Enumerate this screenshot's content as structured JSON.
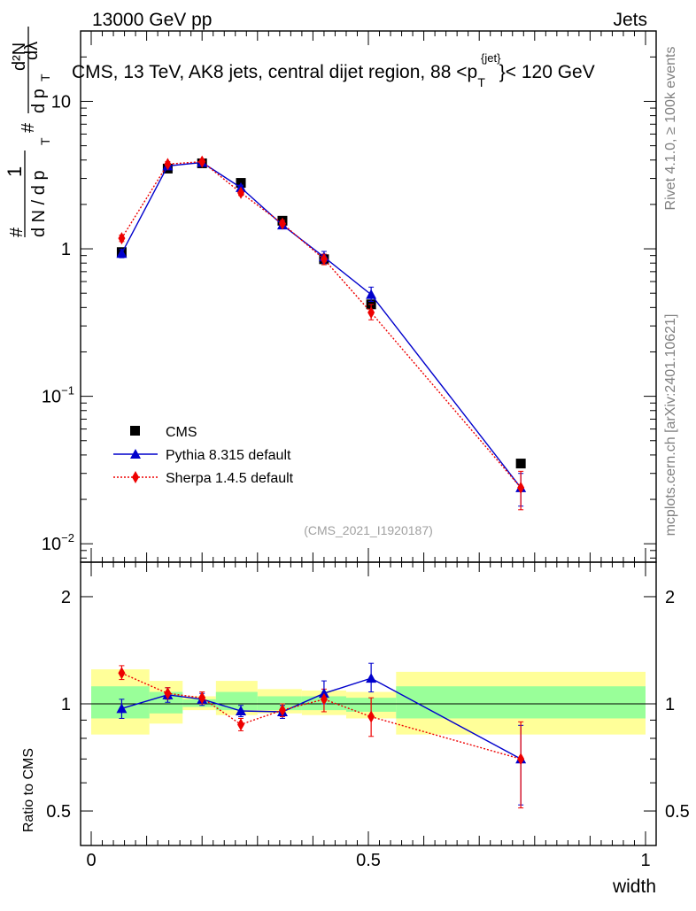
{
  "header": {
    "energy_label": "13000 GeV pp",
    "process_label": "Jets",
    "rivet_label": "Rivet 4.1.0, ≥ 100k events",
    "mcplots_label": "mcplots.cern.ch [arXiv:2401.10621]",
    "analysis_label": "(CMS_2021_I1920187)"
  },
  "ylabel_top": {
    "a": "#",
    "b": "1",
    "c": "d N / d p",
    "d": "T",
    "e": "#",
    "f": "d²N",
    "g": "d p",
    "h": "T",
    "i": "dλ"
  },
  "ylabel_bottom": "Ratio to CMS",
  "xlabel": "width",
  "title": {
    "pre": "CMS, 13 TeV, AK8 jets, central dijet region, 88 <p",
    "sup": "{jet}",
    "sub": "T",
    "post": "}< 120 GeV"
  },
  "legend": [
    {
      "key": "cms",
      "label": "CMS",
      "color": "#000000"
    },
    {
      "key": "pythia",
      "label": "Pythia 8.315 default",
      "color": "#0000cc"
    },
    {
      "key": "sherpa",
      "label": "Sherpa 1.4.5 default",
      "color": "#ee0000"
    }
  ],
  "colors": {
    "band_outer": "#ffff99",
    "band_inner": "#99ff99",
    "cms": "#000000",
    "pythia": "#0000cc",
    "sherpa": "#ee0000"
  },
  "chart_data": {
    "type": "scatter",
    "x_range": [
      0,
      1
    ],
    "x_ticks": [
      {
        "v": 0,
        "label": "0"
      },
      {
        "v": 0.5,
        "label": "0.5"
      },
      {
        "v": 1,
        "label": "1"
      }
    ],
    "main": {
      "yscale": "log",
      "ylim": [
        0.0075,
        30
      ],
      "y_ticks": [
        {
          "v": 0.01,
          "base": "10",
          "exp": "−2"
        },
        {
          "v": 0.1,
          "base": "10",
          "exp": "−1"
        },
        {
          "v": 1,
          "base": "1",
          "exp": ""
        },
        {
          "v": 10,
          "base": "10",
          "exp": ""
        }
      ],
      "x_bins": [
        [
          0,
          0.105
        ],
        [
          0.105,
          0.175
        ],
        [
          0.175,
          0.245
        ],
        [
          0.245,
          0.315
        ],
        [
          0.315,
          0.385
        ],
        [
          0.385,
          0.455
        ],
        [
          0.455,
          0.55
        ],
        [
          0.55,
          1.0
        ]
      ],
      "cms": [
        {
          "x": 0.055,
          "y": 0.95
        },
        {
          "x": 0.138,
          "y": 3.5
        },
        {
          "x": 0.2,
          "y": 3.8
        },
        {
          "x": 0.27,
          "y": 2.8
        },
        {
          "x": 0.345,
          "y": 1.55
        },
        {
          "x": 0.42,
          "y": 0.85
        },
        {
          "x": 0.505,
          "y": 0.42
        },
        {
          "x": 0.775,
          "y": 0.035
        }
      ],
      "pythia": [
        {
          "x": 0.055,
          "y": 0.93,
          "lo": 0.87,
          "hi": 0.99
        },
        {
          "x": 0.138,
          "y": 3.65,
          "lo": 3.5,
          "hi": 3.8
        },
        {
          "x": 0.2,
          "y": 3.85,
          "lo": 3.7,
          "hi": 4.0
        },
        {
          "x": 0.27,
          "y": 2.6,
          "lo": 2.5,
          "hi": 2.7
        },
        {
          "x": 0.345,
          "y": 1.45,
          "lo": 1.38,
          "hi": 1.52
        },
        {
          "x": 0.42,
          "y": 0.88,
          "lo": 0.8,
          "hi": 0.96
        },
        {
          "x": 0.505,
          "y": 0.49,
          "lo": 0.44,
          "hi": 0.55
        },
        {
          "x": 0.775,
          "y": 0.024,
          "lo": 0.018,
          "hi": 0.03
        }
      ],
      "sherpa": [
        {
          "x": 0.055,
          "y": 1.18,
          "lo": 1.12,
          "hi": 1.24
        },
        {
          "x": 0.138,
          "y": 3.75,
          "lo": 3.6,
          "hi": 3.9
        },
        {
          "x": 0.2,
          "y": 3.9,
          "lo": 3.75,
          "hi": 4.05
        },
        {
          "x": 0.27,
          "y": 2.4,
          "lo": 2.3,
          "hi": 2.5
        },
        {
          "x": 0.345,
          "y": 1.48,
          "lo": 1.4,
          "hi": 1.56
        },
        {
          "x": 0.42,
          "y": 0.85,
          "lo": 0.78,
          "hi": 0.92
        },
        {
          "x": 0.505,
          "y": 0.37,
          "lo": 0.33,
          "hi": 0.42
        },
        {
          "x": 0.775,
          "y": 0.024,
          "lo": 0.017,
          "hi": 0.031
        }
      ]
    },
    "ratio": {
      "yscale": "log",
      "ylim": [
        0.4,
        2.5
      ],
      "y_ticks": [
        {
          "v": 0.5,
          "label": "0.5"
        },
        {
          "v": 1,
          "label": "1"
        },
        {
          "v": 2,
          "label": "2"
        }
      ],
      "bands": [
        {
          "x0": 0.0,
          "x1": 0.105,
          "outer_lo": 0.82,
          "outer_hi": 1.25,
          "inner_lo": 0.91,
          "inner_hi": 1.12
        },
        {
          "x0": 0.105,
          "x1": 0.165,
          "outer_lo": 0.88,
          "outer_hi": 1.16,
          "inner_lo": 0.94,
          "inner_hi": 1.08
        },
        {
          "x0": 0.165,
          "x1": 0.225,
          "outer_lo": 0.96,
          "outer_hi": 1.05,
          "inner_lo": 0.98,
          "inner_hi": 1.03
        },
        {
          "x0": 0.225,
          "x1": 0.3,
          "outer_lo": 0.93,
          "outer_hi": 1.16,
          "inner_lo": 0.96,
          "inner_hi": 1.08
        },
        {
          "x0": 0.3,
          "x1": 0.38,
          "outer_lo": 0.94,
          "outer_hi": 1.1,
          "inner_lo": 0.96,
          "inner_hi": 1.05
        },
        {
          "x0": 0.38,
          "x1": 0.46,
          "outer_lo": 0.93,
          "outer_hi": 1.09,
          "inner_lo": 0.96,
          "inner_hi": 1.05
        },
        {
          "x0": 0.46,
          "x1": 0.55,
          "outer_lo": 0.91,
          "outer_hi": 1.08,
          "inner_lo": 0.95,
          "inner_hi": 1.04
        },
        {
          "x0": 0.55,
          "x1": 1.0,
          "outer_lo": 0.82,
          "outer_hi": 1.23,
          "inner_lo": 0.91,
          "inner_hi": 1.12
        }
      ],
      "pythia": [
        {
          "x": 0.055,
          "y": 0.97,
          "lo": 0.91,
          "hi": 1.03
        },
        {
          "x": 0.138,
          "y": 1.06,
          "lo": 1.01,
          "hi": 1.11
        },
        {
          "x": 0.2,
          "y": 1.03,
          "lo": 0.99,
          "hi": 1.07
        },
        {
          "x": 0.27,
          "y": 0.955,
          "lo": 0.92,
          "hi": 0.99
        },
        {
          "x": 0.345,
          "y": 0.95,
          "lo": 0.91,
          "hi": 0.99
        },
        {
          "x": 0.42,
          "y": 1.07,
          "lo": 1.0,
          "hi": 1.16
        },
        {
          "x": 0.505,
          "y": 1.18,
          "lo": 1.08,
          "hi": 1.3
        },
        {
          "x": 0.775,
          "y": 0.7,
          "lo": 0.52,
          "hi": 0.87
        }
      ],
      "sherpa": [
        {
          "x": 0.055,
          "y": 1.22,
          "lo": 1.17,
          "hi": 1.28
        },
        {
          "x": 0.138,
          "y": 1.07,
          "lo": 1.03,
          "hi": 1.11
        },
        {
          "x": 0.2,
          "y": 1.04,
          "lo": 1.0,
          "hi": 1.08
        },
        {
          "x": 0.27,
          "y": 0.875,
          "lo": 0.84,
          "hi": 0.91
        },
        {
          "x": 0.345,
          "y": 0.96,
          "lo": 0.92,
          "hi": 1.0
        },
        {
          "x": 0.42,
          "y": 1.03,
          "lo": 0.95,
          "hi": 1.1
        },
        {
          "x": 0.505,
          "y": 0.92,
          "lo": 0.81,
          "hi": 1.04
        },
        {
          "x": 0.775,
          "y": 0.7,
          "lo": 0.51,
          "hi": 0.89
        }
      ]
    }
  }
}
